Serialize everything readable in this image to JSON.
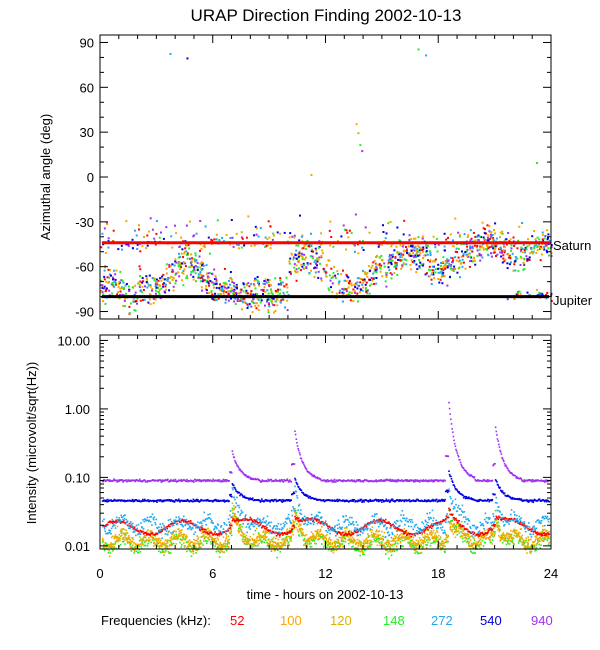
{
  "chart_data": [
    {
      "type": "scatter",
      "title": "URAP Direction Finding  2002-10-13",
      "ylabel": "Azimuthal angle (deg)",
      "xlim": [
        0,
        24
      ],
      "ylim": [
        -95,
        95
      ],
      "yticks": [
        90,
        60,
        30,
        0,
        -30,
        -60,
        -90
      ],
      "xticks": [
        0,
        6,
        12,
        18,
        24
      ],
      "reference_lines": [
        {
          "name": "Saturn",
          "y": -44,
          "color": "#ff0000"
        },
        {
          "name": "Jupiter",
          "y": -80,
          "color": "#000000"
        }
      ],
      "series": [
        {
          "name": "52",
          "color": "#ff0000"
        },
        {
          "name": "100",
          "color": "#ffa500"
        },
        {
          "name": "120",
          "color": "#e0b000"
        },
        {
          "name": "148",
          "color": "#22ee22"
        },
        {
          "name": "272",
          "color": "#1ea8f0"
        },
        {
          "name": "540",
          "color": "#0000e0"
        },
        {
          "name": "940",
          "color": "#a030f0"
        }
      ]
    },
    {
      "type": "line",
      "ylabel": "Intensity (microvolt/sqrt(Hz))",
      "xlabel": "time - hours on 2002-10-13",
      "xlim": [
        0,
        24
      ],
      "ylim": [
        0.009,
        12
      ],
      "yscale": "log",
      "ytick_labels": [
        "10.00",
        "1.00",
        "0.10",
        "0.01"
      ],
      "yticks": [
        10,
        1,
        0.1,
        0.01
      ],
      "xtick_labels": [
        "0",
        "6",
        "12",
        "18",
        "24"
      ],
      "series_baselines": [
        {
          "name": "940",
          "level": 0.092
        },
        {
          "name": "540",
          "level": 0.047
        },
        {
          "name": "272",
          "level": 0.021
        },
        {
          "name": "52",
          "level": 0.019
        },
        {
          "name": "120",
          "level": 0.013
        },
        {
          "name": "100",
          "level": 0.012
        },
        {
          "name": "148",
          "level": 0.011
        }
      ],
      "peaks_hours": [
        7.0,
        10.3,
        18.5,
        21.0
      ]
    }
  ],
  "legend": {
    "label": "Frequencies (kHz):",
    "items": [
      {
        "text": "52",
        "color": "#ff0000"
      },
      {
        "text": "100",
        "color": "#ffa500"
      },
      {
        "text": "120",
        "color": "#e0b000"
      },
      {
        "text": "148",
        "color": "#22ee22"
      },
      {
        "text": "272",
        "color": "#1ea8f0"
      },
      {
        "text": "540",
        "color": "#0000e0"
      },
      {
        "text": "940",
        "color": "#a030f0"
      }
    ]
  }
}
